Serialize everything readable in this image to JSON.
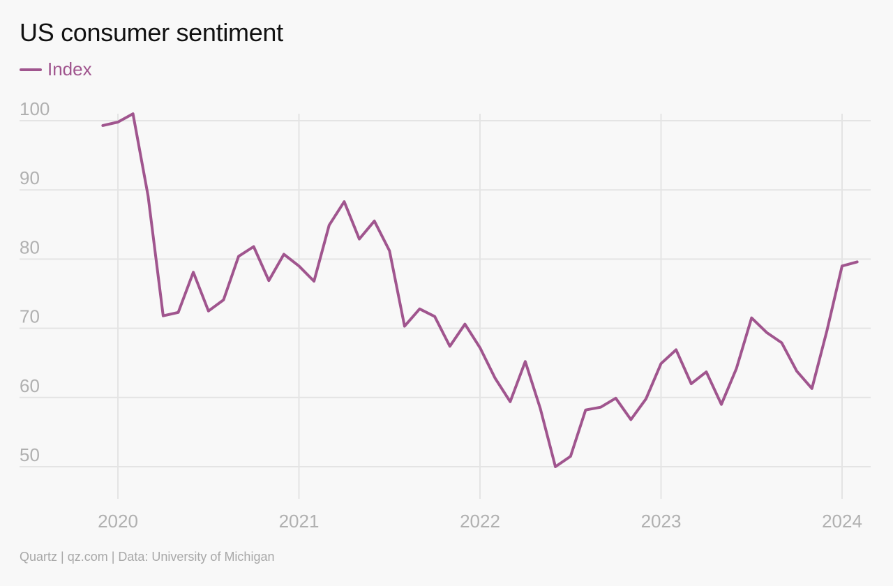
{
  "chart_data": {
    "type": "line",
    "title": "US consumer sentiment",
    "source": "Quartz | qz.com | Data: University of Michigan",
    "ylim": [
      50,
      100
    ],
    "yticks": [
      100,
      90,
      80,
      70,
      60,
      50
    ],
    "xticks": [
      {
        "value": "2020-01",
        "label": "2020"
      },
      {
        "value": "2021-01",
        "label": "2021"
      },
      {
        "value": "2022-01",
        "label": "2022"
      },
      {
        "value": "2023-01",
        "label": "2023"
      },
      {
        "value": "2024-01",
        "label": "2024"
      }
    ],
    "grid": true,
    "legend": "top-left",
    "series": [
      {
        "name": "Index",
        "color": "#a0558e",
        "x": [
          "2019-12",
          "2020-01",
          "2020-02",
          "2020-03",
          "2020-04",
          "2020-05",
          "2020-06",
          "2020-07",
          "2020-08",
          "2020-09",
          "2020-10",
          "2020-11",
          "2020-12",
          "2021-01",
          "2021-02",
          "2021-03",
          "2021-04",
          "2021-05",
          "2021-06",
          "2021-07",
          "2021-08",
          "2021-09",
          "2021-10",
          "2021-11",
          "2021-12",
          "2022-01",
          "2022-02",
          "2022-03",
          "2022-04",
          "2022-05",
          "2022-06",
          "2022-07",
          "2022-08",
          "2022-09",
          "2022-10",
          "2022-11",
          "2022-12",
          "2023-01",
          "2023-02",
          "2023-03",
          "2023-04",
          "2023-05",
          "2023-06",
          "2023-07",
          "2023-08",
          "2023-09",
          "2023-10",
          "2023-11",
          "2023-12",
          "2024-01",
          "2024-02"
        ],
        "values": [
          99.3,
          99.8,
          101.0,
          89.1,
          71.8,
          72.3,
          78.1,
          72.5,
          74.1,
          80.4,
          81.8,
          76.9,
          80.7,
          79.0,
          76.8,
          84.9,
          88.3,
          82.9,
          85.5,
          81.2,
          70.3,
          72.8,
          71.7,
          67.4,
          70.6,
          67.2,
          62.8,
          59.4,
          65.2,
          58.4,
          50.0,
          51.5,
          58.2,
          58.6,
          59.9,
          56.8,
          59.8,
          64.9,
          66.9,
          62.0,
          63.7,
          59.0,
          64.2,
          71.5,
          69.4,
          67.9,
          63.8,
          61.3,
          69.7,
          79.0,
          79.6
        ]
      }
    ]
  }
}
